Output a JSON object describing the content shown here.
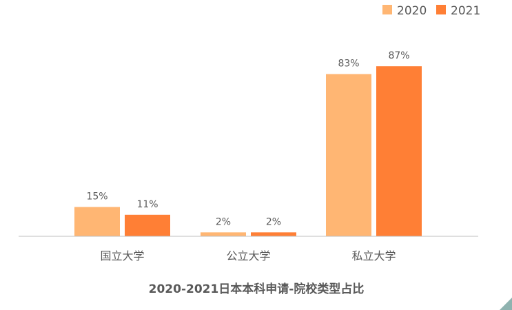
{
  "chart_data": {
    "type": "bar",
    "title": "2020-2021日本本科申请-院校类型占比",
    "categories": [
      "国立大学",
      "公立大学",
      "私立大学"
    ],
    "series": [
      {
        "name": "2020",
        "values": [
          15,
          2,
          83
        ],
        "labels": [
          "15%",
          "2%",
          "83%"
        ],
        "color": "#FFB673"
      },
      {
        "name": "2021",
        "values": [
          11,
          2,
          87
        ],
        "labels": [
          "11%",
          "2%",
          "87%"
        ],
        "color": "#FF7F35"
      }
    ],
    "unit": "%",
    "ylim": [
      0,
      100
    ],
    "grid": false,
    "legend": "top-right"
  }
}
